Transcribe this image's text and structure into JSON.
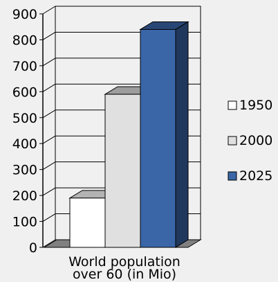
{
  "chart_data": {
    "type": "bar",
    "title": "",
    "xlabel": "",
    "ylabel": "",
    "category_label_lines": [
      "World population",
      "over 60 (in Mio)"
    ],
    "categories": [
      "World population over 60 (in Mio)"
    ],
    "ylim": [
      0,
      900
    ],
    "yticks": [
      "0",
      "100",
      "200",
      "300",
      "400",
      "500",
      "600",
      "700",
      "800",
      "900"
    ],
    "grid": true,
    "legend_position": "right",
    "series": [
      {
        "name": "1950",
        "values": [
          190
        ],
        "color": "#ffffff"
      },
      {
        "name": "2000",
        "values": [
          590
        ],
        "color": "#e0e0e0"
      },
      {
        "name": "2025",
        "values": [
          840
        ],
        "color": "#3a66a8"
      }
    ]
  }
}
